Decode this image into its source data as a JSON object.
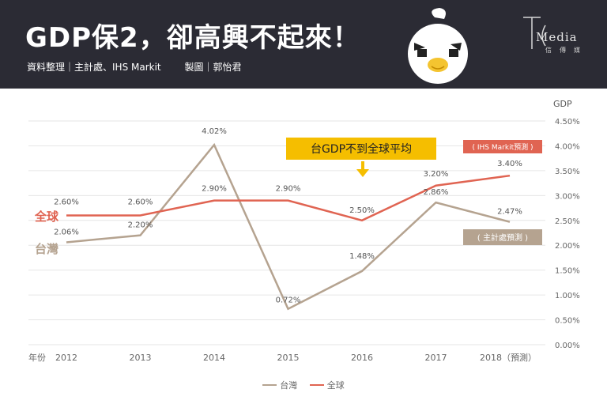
{
  "header": {
    "title": "GDP保2，卻高興不起來！",
    "credit_source": "資料整理｜主計處、IHS Markit",
    "credit_maker": "製圖｜郭怡君",
    "logo_text": "Media",
    "logo_sub": "信傳媒"
  },
  "colors": {
    "header_bg": "#2b2b34",
    "taiwan": "#b5a390",
    "global": "#e06452",
    "callout": "#f5be00"
  },
  "chart_data": {
    "type": "line",
    "title": "",
    "ylabel": "GDP",
    "xlabel_prefix": "年份",
    "categories": [
      "2012",
      "2013",
      "2014",
      "2015",
      "2016",
      "2017",
      "2018（預測）"
    ],
    "ylim": [
      0,
      4.5
    ],
    "yticks": [
      0,
      0.5,
      1.0,
      1.5,
      2.0,
      2.5,
      3.0,
      3.5,
      4.0,
      4.5
    ],
    "ytick_labels": [
      "0.00%",
      "0.50%",
      "1.00%",
      "1.50%",
      "2.00%",
      "2.50%",
      "3.00%",
      "3.50%",
      "4.00%",
      "4.50%"
    ],
    "grid": true,
    "series": [
      {
        "name": "全球",
        "values": [
          2.6,
          2.6,
          2.9,
          2.9,
          2.5,
          3.2,
          3.4
        ],
        "labels": [
          "2.60%",
          "2.60%",
          "2.90%",
          "2.90%",
          "2.50%",
          "3.20%",
          "3.40%"
        ]
      },
      {
        "name": "台灣",
        "values": [
          2.06,
          2.2,
          4.02,
          0.72,
          1.48,
          2.86,
          2.47
        ],
        "labels": [
          "2.06%",
          "2.20%",
          "4.02%",
          "0.72%",
          "1.48%",
          "2.86%",
          "2.47%"
        ]
      }
    ],
    "annotations": {
      "callout": "台GDP不到全球平均",
      "global_forecast": "( IHS Markit預測 )",
      "taiwan_forecast": "( 主計處預測 )"
    },
    "legend": [
      "台灣",
      "全球"
    ],
    "legend_position": "bottom"
  }
}
